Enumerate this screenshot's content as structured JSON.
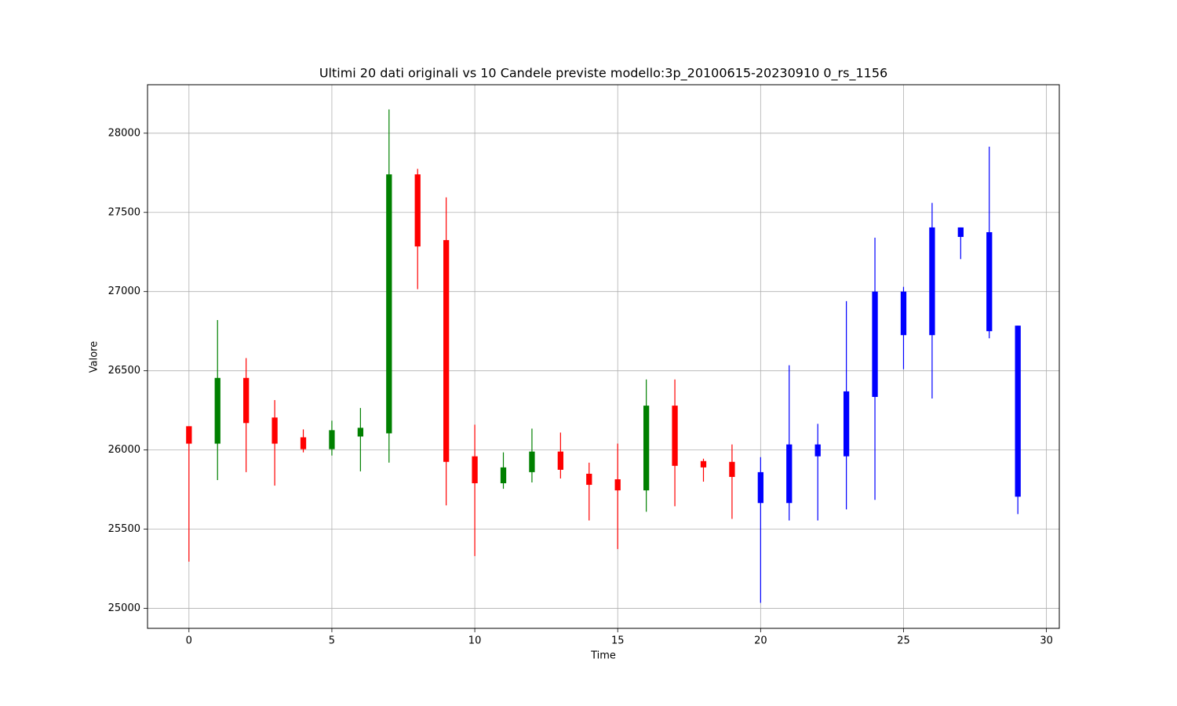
{
  "chart_data": {
    "type": "candlestick",
    "title": "Ultimi 20 dati originali vs 10 Candele previste modello:3p_20100615-20230910 0_rs_1156",
    "xlabel": "Time",
    "ylabel": "Valore",
    "x": [
      0,
      1,
      2,
      3,
      4,
      5,
      6,
      7,
      8,
      9,
      10,
      11,
      12,
      13,
      14,
      15,
      16,
      17,
      18,
      19,
      20,
      21,
      22,
      23,
      24,
      25,
      26,
      27,
      28,
      29
    ],
    "open": [
      26150,
      26040,
      26455,
      26205,
      26080,
      26005,
      26085,
      26105,
      27740,
      27325,
      25960,
      25790,
      25860,
      25990,
      25850,
      25815,
      25745,
      26280,
      25930,
      25925,
      25860,
      25665,
      26035,
      25960,
      26335,
      27000,
      26725,
      27405,
      27375,
      26785
    ],
    "high": [
      26150,
      26820,
      26580,
      26315,
      26130,
      26185,
      26265,
      28150,
      27775,
      27595,
      26160,
      25985,
      26135,
      26110,
      25920,
      26040,
      26445,
      26445,
      25945,
      26035,
      25955,
      26535,
      26165,
      26940,
      27340,
      27030,
      27560,
      27405,
      27915,
      26785
    ],
    "low": [
      25295,
      25810,
      25860,
      25775,
      25985,
      25965,
      25865,
      25920,
      27015,
      25650,
      25330,
      25755,
      25795,
      25820,
      25555,
      25375,
      25610,
      25645,
      25800,
      25565,
      25035,
      25555,
      25555,
      25625,
      25685,
      26510,
      26325,
      27205,
      26705,
      25595
    ],
    "close": [
      26040,
      26455,
      26170,
      26040,
      26005,
      26125,
      26140,
      27740,
      27285,
      25925,
      25790,
      25890,
      25990,
      25875,
      25780,
      25745,
      26280,
      25900,
      25890,
      25830,
      25665,
      26035,
      25960,
      26370,
      27000,
      26725,
      27405,
      27345,
      26750,
      25705
    ],
    "colors": [
      "red",
      "green",
      "red",
      "red",
      "red",
      "green",
      "green",
      "green",
      "red",
      "red",
      "red",
      "green",
      "green",
      "red",
      "red",
      "red",
      "green",
      "red",
      "red",
      "red",
      "blue",
      "blue",
      "blue",
      "blue",
      "blue",
      "blue",
      "blue",
      "blue",
      "blue",
      "blue"
    ],
    "xlim": [
      -1.45,
      30.45
    ],
    "ylim": [
      24874,
      28306
    ],
    "xticks": [
      0,
      5,
      10,
      15,
      20,
      25,
      30
    ],
    "yticks": [
      25000,
      25500,
      26000,
      26500,
      27000,
      27500,
      28000
    ],
    "grid": true
  }
}
